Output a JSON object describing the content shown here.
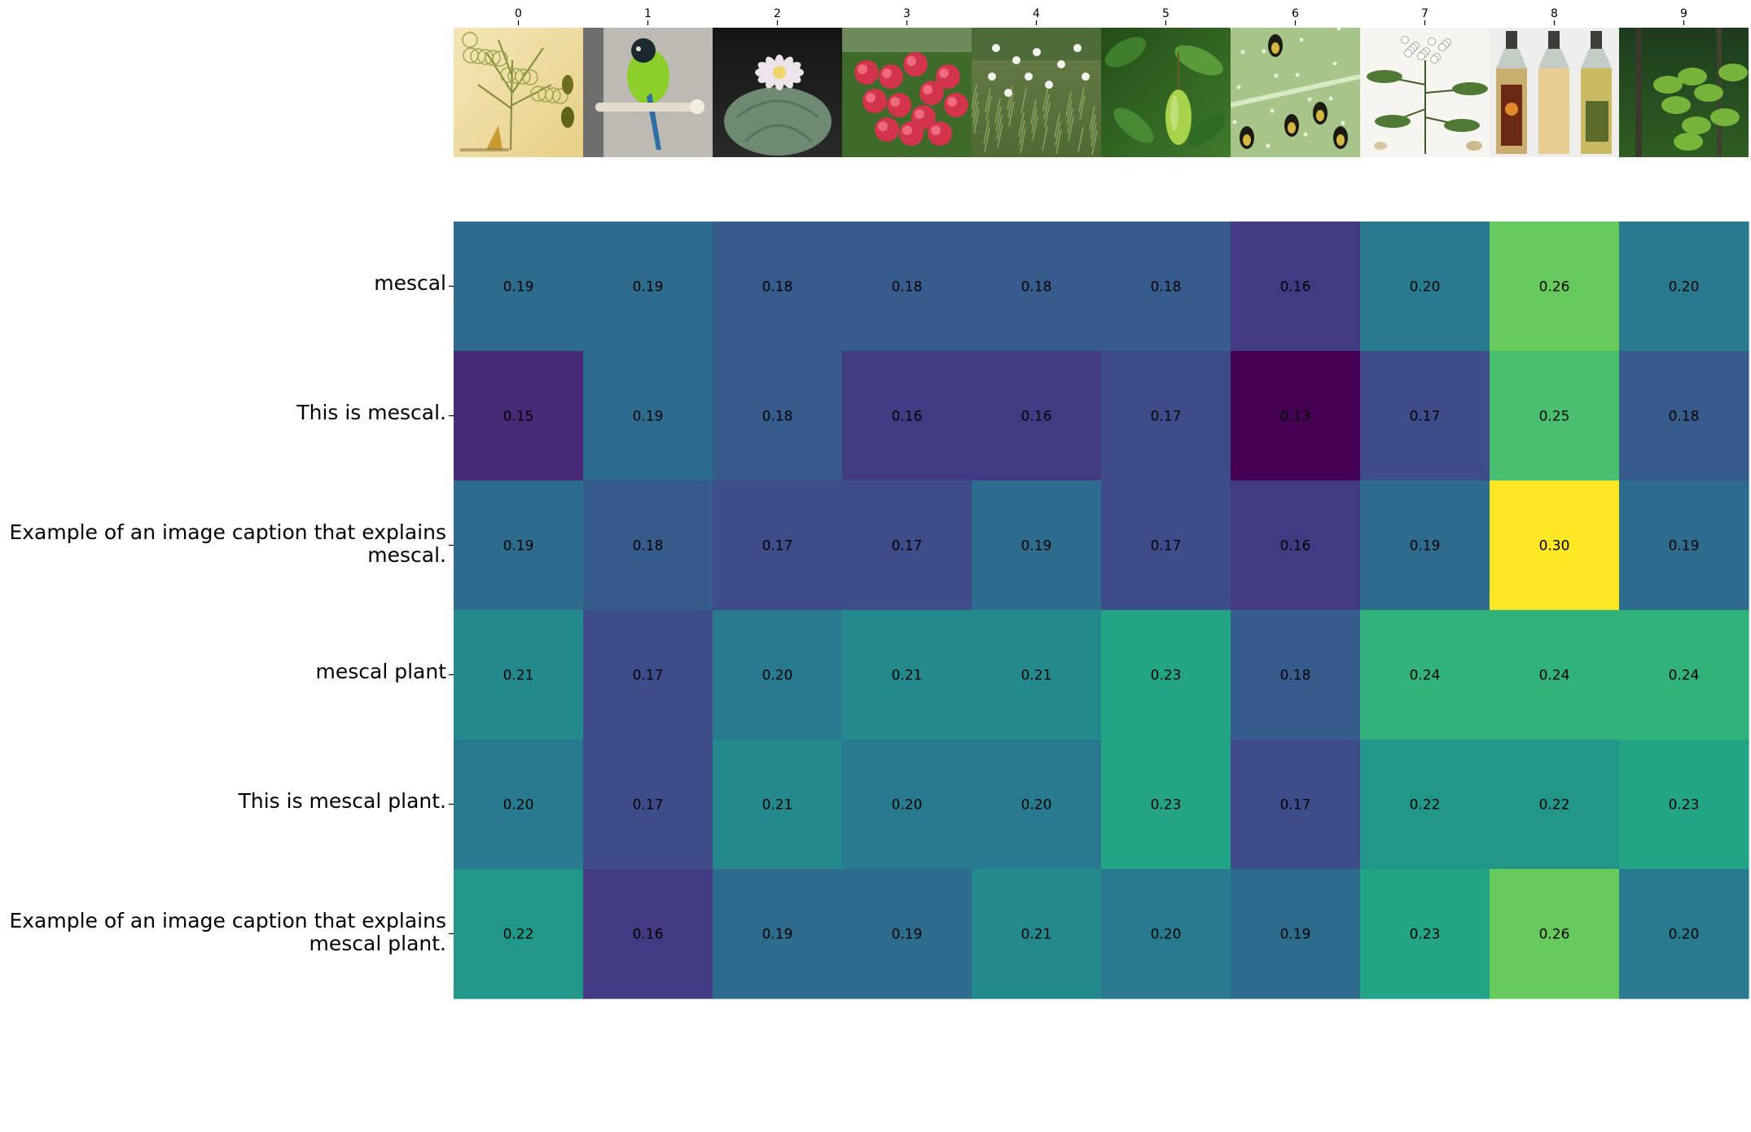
{
  "chart_data": {
    "type": "heatmap",
    "title": "",
    "columns": [
      "0",
      "1",
      "2",
      "3",
      "4",
      "5",
      "6",
      "7",
      "8",
      "9"
    ],
    "column_thumbnails": [
      "botanical illustration of a dill/fennel plant",
      "green parrot perched on a wooden stick",
      "lophophora cactus with pale pink flower",
      "cluster of red flowers",
      "white wildflowers in grass",
      "green leaves with hanging green pod",
      "beetles on a green leaf",
      "botanical illustration of a plant with white flowers",
      "three bottles of mescal",
      "green foliage in a forest"
    ],
    "rows": [
      "mescal",
      "This is mescal.",
      "Example of an image caption that explains mescal.",
      "mescal plant",
      "This is mescal plant.",
      "Example of an image caption that explains mescal plant."
    ],
    "row_labels_display": [
      [
        "mescal"
      ],
      [
        "This is mescal."
      ],
      [
        "Example of an image caption that explains",
        "mescal."
      ],
      [
        "mescal plant"
      ],
      [
        "This is mescal plant."
      ],
      [
        "Example of an image caption that explains",
        "mescal plant."
      ]
    ],
    "values": [
      [
        0.19,
        0.19,
        0.18,
        0.18,
        0.18,
        0.18,
        0.16,
        0.2,
        0.26,
        0.2
      ],
      [
        0.15,
        0.19,
        0.18,
        0.16,
        0.16,
        0.17,
        0.13,
        0.17,
        0.25,
        0.18
      ],
      [
        0.19,
        0.18,
        0.17,
        0.17,
        0.19,
        0.17,
        0.16,
        0.19,
        0.3,
        0.19
      ],
      [
        0.21,
        0.17,
        0.2,
        0.21,
        0.21,
        0.23,
        0.18,
        0.24,
        0.24,
        0.24
      ],
      [
        0.2,
        0.17,
        0.21,
        0.2,
        0.2,
        0.23,
        0.17,
        0.22,
        0.22,
        0.23
      ],
      [
        0.22,
        0.16,
        0.19,
        0.19,
        0.21,
        0.2,
        0.19,
        0.23,
        0.26,
        0.2
      ]
    ],
    "colormap": "viridis",
    "vmin": 0.13,
    "vmax": 0.3,
    "colorbar": false,
    "grid": false
  }
}
